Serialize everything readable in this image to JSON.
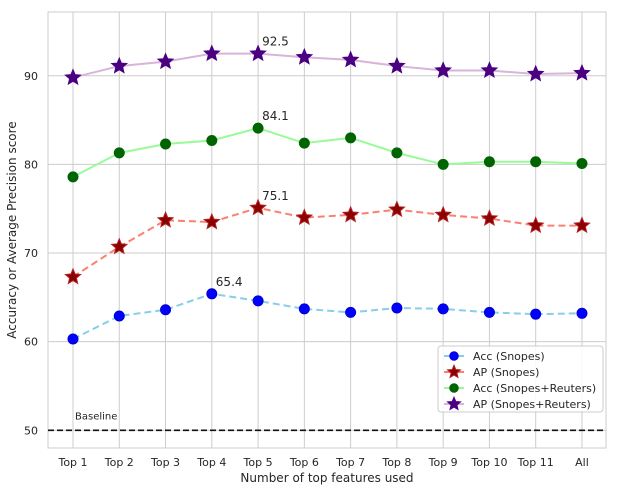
{
  "chart_data": {
    "type": "line",
    "categories": [
      "Top 1",
      "Top 2",
      "Top 3",
      "Top 4",
      "Top 5",
      "Top 6",
      "Top 7",
      "Top 8",
      "Top 9",
      "Top 10",
      "Top 11",
      "All"
    ],
    "xlabel": "Number of top features used",
    "ylabel": "Accuracy or Average Precision score",
    "ylim": [
      48,
      97.2
    ],
    "yticks": [
      50,
      60,
      70,
      80,
      90
    ],
    "grid": true,
    "legend_position": "lower-right",
    "baseline": {
      "value": 50,
      "label": "Baseline",
      "color": "#111111"
    },
    "series": [
      {
        "name": "Acc (Snopes)",
        "values": [
          60.3,
          62.9,
          63.6,
          65.4,
          64.6,
          63.7,
          63.3,
          63.8,
          63.7,
          63.3,
          63.1,
          63.2
        ],
        "line_color": "#87ceeb",
        "marker": "circle",
        "marker_color": "#0000ff",
        "marker_edge": "#0000cc"
      },
      {
        "name": "AP (Snopes)",
        "values": [
          67.3,
          70.7,
          73.7,
          73.5,
          75.1,
          74.0,
          74.3,
          74.9,
          74.3,
          73.9,
          73.1,
          73.1
        ],
        "line_color": "#fa8072",
        "marker": "star",
        "marker_color": "#8b0000",
        "marker_edge": "#b22222"
      },
      {
        "name": "Acc (Snopes+Reuters)",
        "values": [
          78.6,
          81.3,
          82.3,
          82.7,
          84.1,
          82.4,
          83.0,
          81.3,
          80.0,
          80.3,
          80.3,
          80.1
        ],
        "line_color": "#98fb98",
        "marker": "circle",
        "marker_color": "#006400",
        "marker_edge": "#006400"
      },
      {
        "name": "AP (Snopes+Reuters)",
        "values": [
          89.8,
          91.1,
          91.6,
          92.5,
          92.5,
          92.1,
          91.8,
          91.1,
          90.6,
          90.6,
          90.2,
          90.3
        ],
        "line_color": "#d8b4d8",
        "marker": "star",
        "marker_color": "#4b0082",
        "marker_edge": "#4b0082"
      }
    ],
    "annotations": [
      {
        "series": 0,
        "index": 3,
        "text": "65.4"
      },
      {
        "series": 1,
        "index": 4,
        "text": "75.1"
      },
      {
        "series": 2,
        "index": 4,
        "text": "84.1"
      },
      {
        "series": 3,
        "index": 4,
        "text": "92.5"
      }
    ]
  }
}
